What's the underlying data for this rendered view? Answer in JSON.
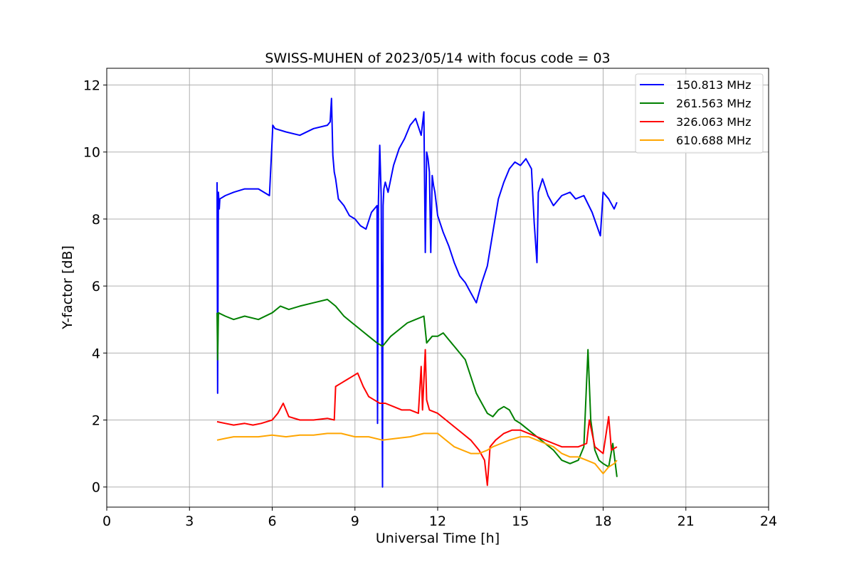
{
  "chart_data": {
    "type": "line",
    "title": "SWISS-MUHEN of 2023/05/14 with focus code = 03",
    "xlabel": "Universal Time [h]",
    "ylabel": "Y-factor [dB]",
    "xlim": [
      0,
      24
    ],
    "ylim": [
      -0.6,
      12.5
    ],
    "xticks": [
      0,
      3,
      6,
      9,
      12,
      15,
      18,
      21,
      24
    ],
    "yticks": [
      0,
      2,
      4,
      6,
      8,
      10,
      12
    ],
    "grid": true,
    "legend_position": "top-right",
    "series": [
      {
        "name": "150.813 MHz",
        "color": "#0000ff",
        "x": [
          4.0,
          4.02,
          4.05,
          4.08,
          4.1,
          4.3,
          4.6,
          5.0,
          5.5,
          5.9,
          6.0,
          6.02,
          6.1,
          6.5,
          7.0,
          7.5,
          8.0,
          8.1,
          8.15,
          8.2,
          8.25,
          8.3,
          8.4,
          8.6,
          8.8,
          9.0,
          9.2,
          9.4,
          9.6,
          9.8,
          9.82,
          9.85,
          9.9,
          9.95,
          10.0,
          10.02,
          10.05,
          10.1,
          10.2,
          10.4,
          10.6,
          10.8,
          11.0,
          11.2,
          11.4,
          11.5,
          11.55,
          11.6,
          11.65,
          11.7,
          11.75,
          11.8,
          11.85,
          11.9,
          12.0,
          12.2,
          12.4,
          12.6,
          12.8,
          13.0,
          13.2,
          13.4,
          13.6,
          13.8,
          14.0,
          14.2,
          14.4,
          14.6,
          14.8,
          15.0,
          15.2,
          15.4,
          15.5,
          15.6,
          15.65,
          15.8,
          16.0,
          16.2,
          16.5,
          16.8,
          17.0,
          17.3,
          17.6,
          17.9,
          18.0,
          18.2,
          18.4,
          18.5
        ],
        "values": [
          9.1,
          2.8,
          8.8,
          8.3,
          8.6,
          8.7,
          8.8,
          8.9,
          8.9,
          8.7,
          10.4,
          10.8,
          10.7,
          10.6,
          10.5,
          10.7,
          10.8,
          10.9,
          11.6,
          9.9,
          9.4,
          9.2,
          8.6,
          8.4,
          8.1,
          8.0,
          7.8,
          7.7,
          8.2,
          8.4,
          1.9,
          8.5,
          10.2,
          8.7,
          0.0,
          8.4,
          8.9,
          9.1,
          8.8,
          9.6,
          10.1,
          10.4,
          10.8,
          11.0,
          10.5,
          11.2,
          7.0,
          10.0,
          9.8,
          9.4,
          7.0,
          9.3,
          9.0,
          8.8,
          8.1,
          7.6,
          7.2,
          6.7,
          6.3,
          6.1,
          5.8,
          5.5,
          6.1,
          6.6,
          7.6,
          8.6,
          9.1,
          9.5,
          9.7,
          9.6,
          9.8,
          9.5,
          7.9,
          6.7,
          8.8,
          9.2,
          8.7,
          8.4,
          8.7,
          8.8,
          8.6,
          8.7,
          8.2,
          7.5,
          8.8,
          8.6,
          8.3,
          8.5
        ]
      },
      {
        "name": "261.563 MHz",
        "color": "#008000",
        "x": [
          4.0,
          4.02,
          4.05,
          4.3,
          4.6,
          5.0,
          5.5,
          6.0,
          6.3,
          6.6,
          7.0,
          7.5,
          8.0,
          8.3,
          8.6,
          8.9,
          9.2,
          9.5,
          9.8,
          10.0,
          10.3,
          10.6,
          10.9,
          11.2,
          11.5,
          11.6,
          11.8,
          12.0,
          12.2,
          12.4,
          12.6,
          12.8,
          13.0,
          13.2,
          13.4,
          13.6,
          13.8,
          14.0,
          14.2,
          14.4,
          14.6,
          14.8,
          15.0,
          15.3,
          15.6,
          15.9,
          16.2,
          16.5,
          16.8,
          17.1,
          17.3,
          17.45,
          17.55,
          17.7,
          17.85,
          18.0,
          18.2,
          18.35,
          18.5
        ],
        "values": [
          5.2,
          3.8,
          5.2,
          5.1,
          5.0,
          5.1,
          5.0,
          5.2,
          5.4,
          5.3,
          5.4,
          5.5,
          5.6,
          5.4,
          5.1,
          4.9,
          4.7,
          4.5,
          4.3,
          4.2,
          4.5,
          4.7,
          4.9,
          5.0,
          5.1,
          4.3,
          4.5,
          4.5,
          4.6,
          4.4,
          4.2,
          4.0,
          3.8,
          3.3,
          2.8,
          2.5,
          2.2,
          2.1,
          2.3,
          2.4,
          2.3,
          2.0,
          1.9,
          1.7,
          1.5,
          1.3,
          1.1,
          0.8,
          0.7,
          0.8,
          1.2,
          4.1,
          2.0,
          1.1,
          0.8,
          0.7,
          0.6,
          1.3,
          0.3
        ]
      },
      {
        "name": "326.063 MHz",
        "color": "#ff0000",
        "x": [
          4.0,
          4.3,
          4.6,
          5.0,
          5.3,
          5.6,
          6.0,
          6.2,
          6.4,
          6.6,
          7.0,
          7.5,
          8.0,
          8.25,
          8.3,
          8.5,
          8.7,
          8.9,
          9.1,
          9.3,
          9.5,
          9.7,
          9.9,
          10.1,
          10.4,
          10.7,
          11.0,
          11.3,
          11.4,
          11.45,
          11.55,
          11.6,
          11.7,
          12.0,
          12.3,
          12.6,
          12.9,
          13.2,
          13.5,
          13.7,
          13.8,
          13.9,
          14.1,
          14.4,
          14.7,
          15.0,
          15.3,
          15.6,
          15.9,
          16.2,
          16.5,
          16.8,
          17.1,
          17.4,
          17.5,
          17.7,
          18.0,
          18.2,
          18.3,
          18.5
        ],
        "values": [
          1.95,
          1.9,
          1.85,
          1.9,
          1.85,
          1.9,
          2.0,
          2.2,
          2.5,
          2.1,
          2.0,
          2.0,
          2.05,
          2.0,
          3.0,
          3.1,
          3.2,
          3.3,
          3.4,
          3.0,
          2.7,
          2.6,
          2.5,
          2.5,
          2.4,
          2.3,
          2.3,
          2.2,
          3.6,
          2.3,
          4.1,
          2.6,
          2.3,
          2.2,
          2.0,
          1.8,
          1.6,
          1.4,
          1.1,
          0.8,
          0.05,
          1.2,
          1.4,
          1.6,
          1.7,
          1.7,
          1.6,
          1.5,
          1.4,
          1.3,
          1.2,
          1.2,
          1.2,
          1.3,
          2.0,
          1.2,
          1.0,
          2.1,
          1.1,
          1.2
        ]
      },
      {
        "name": "610.688 MHz",
        "color": "#ffa500",
        "x": [
          4.0,
          4.3,
          4.6,
          5.0,
          5.5,
          6.0,
          6.5,
          7.0,
          7.5,
          8.0,
          8.5,
          9.0,
          9.5,
          10.0,
          10.5,
          11.0,
          11.5,
          12.0,
          12.3,
          12.6,
          12.9,
          13.2,
          13.5,
          13.8,
          14.0,
          14.3,
          14.6,
          15.0,
          15.3,
          15.6,
          15.9,
          16.2,
          16.5,
          16.8,
          17.1,
          17.4,
          17.7,
          18.0,
          18.2,
          18.4,
          18.5
        ],
        "values": [
          1.4,
          1.45,
          1.5,
          1.5,
          1.5,
          1.55,
          1.5,
          1.55,
          1.55,
          1.6,
          1.6,
          1.5,
          1.5,
          1.4,
          1.45,
          1.5,
          1.6,
          1.6,
          1.4,
          1.2,
          1.1,
          1.0,
          1.0,
          1.1,
          1.2,
          1.3,
          1.4,
          1.5,
          1.5,
          1.4,
          1.3,
          1.2,
          1.0,
          0.9,
          0.9,
          0.8,
          0.7,
          0.4,
          0.6,
          0.7,
          0.8
        ]
      }
    ]
  }
}
